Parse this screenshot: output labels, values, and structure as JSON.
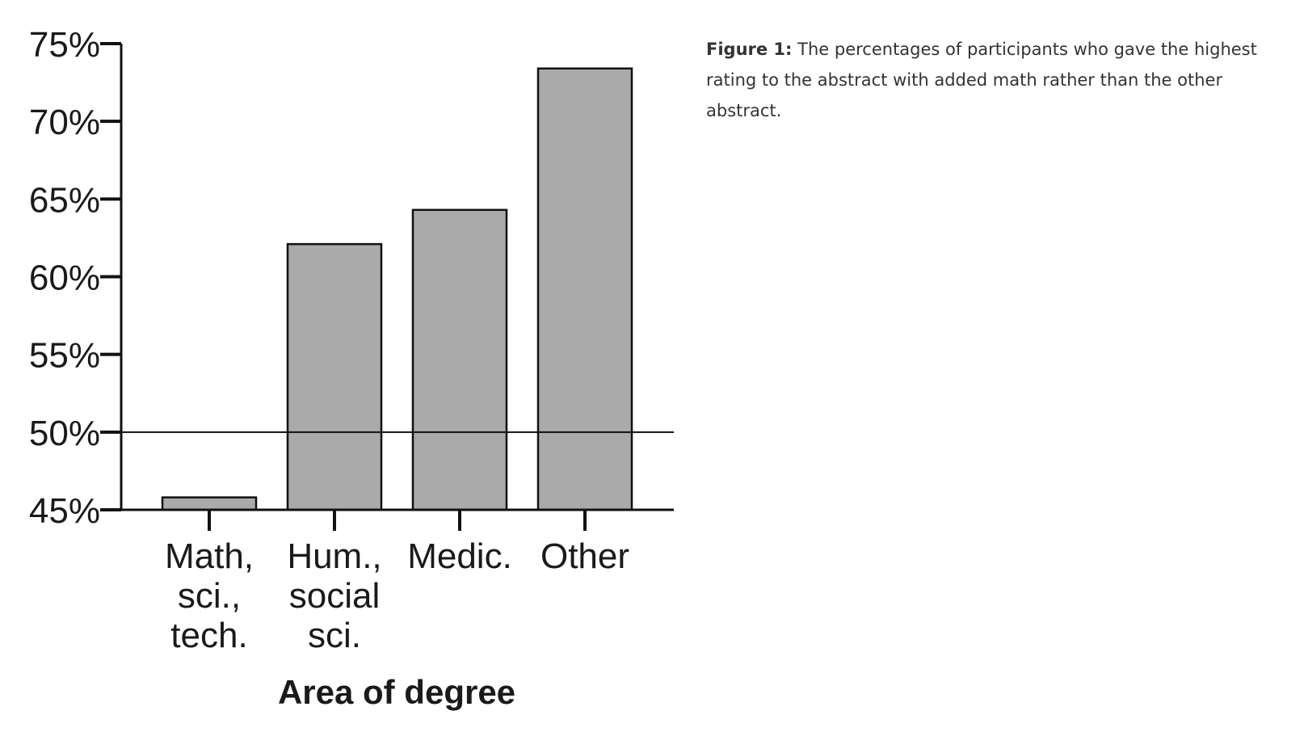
{
  "chart_data": {
    "type": "bar",
    "x_label": "Area of degree",
    "categories": [
      "Math, sci., tech.",
      "Hum., social sci.",
      "Medic.",
      "Other"
    ],
    "values": [
      45.8,
      62.1,
      64.3,
      73.4
    ],
    "color": "#aaaaaa",
    "ylim": [
      45,
      75
    ],
    "yticks": [
      {
        "value": 45,
        "label": "45%"
      },
      {
        "value": 50,
        "label": "50%"
      },
      {
        "value": 55,
        "label": "55%"
      },
      {
        "value": 60,
        "label": "60%"
      },
      {
        "value": 65,
        "label": "65%"
      },
      {
        "value": 70,
        "label": "70%"
      },
      {
        "value": 75,
        "label": "75%"
      }
    ],
    "reference_line": 50
  },
  "caption": {
    "label": "Figure 1:",
    "text": "The percentages of participants who gave the highest rating to the abstract with added math rather than the other abstract."
  }
}
